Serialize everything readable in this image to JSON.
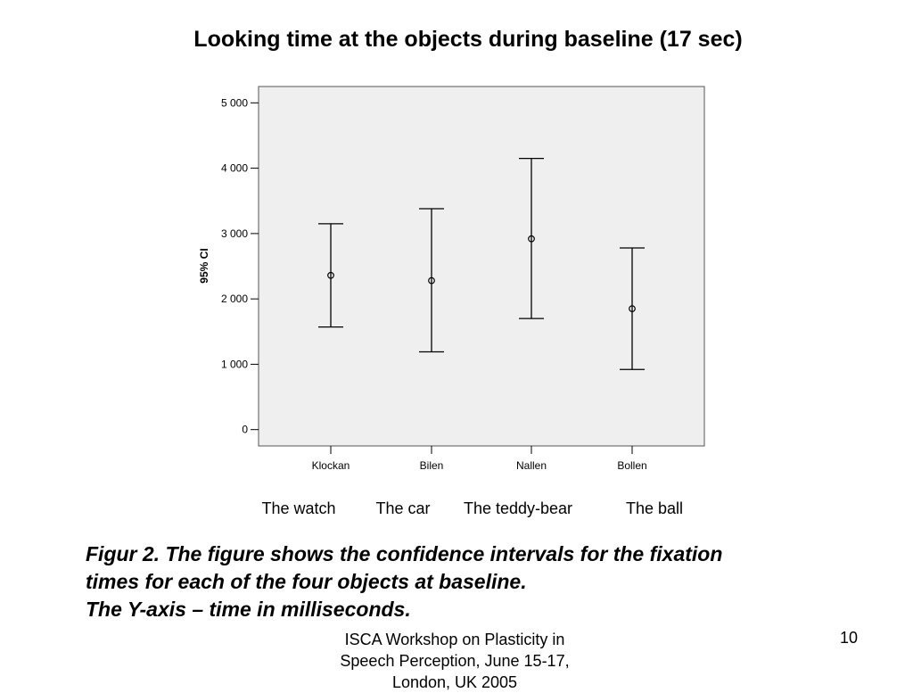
{
  "slide": {
    "title": "Looking time at the objects during baseline (17 sec)",
    "category_labels": [
      "The watch",
      "The car",
      "The teddy-bear",
      "The ball"
    ],
    "caption": [
      "Figur 2. The figure shows the confidence intervals for the fixation",
      "times for each of the four objects at baseline.",
      "The Y-axis – time in milliseconds."
    ],
    "footer": [
      "ISCA Workshop on Plasticity in",
      "Speech Perception, June 15-17,",
      "London, UK 2005"
    ],
    "page_number": "10"
  },
  "chart_data": {
    "type": "errorbar",
    "ylabel": "95% CI",
    "ylim": [
      -250,
      5250
    ],
    "yticks": [
      0,
      1000,
      2000,
      3000,
      4000,
      5000
    ],
    "ytick_labels": [
      "0",
      "1 000",
      "2 000",
      "3 000",
      "4 000",
      "5 000"
    ],
    "categories": [
      "Klockan",
      "Bilen",
      "Nallen",
      "Bollen"
    ],
    "mean": [
      2360,
      2280,
      2920,
      1850
    ],
    "lower": [
      1570,
      1190,
      1700,
      920
    ],
    "upper": [
      3150,
      3380,
      4150,
      2780
    ],
    "background": "#efefef",
    "grid": false
  }
}
